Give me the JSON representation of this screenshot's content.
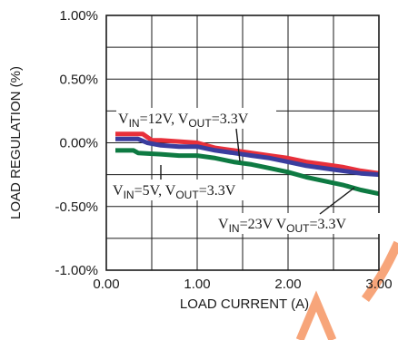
{
  "chart_data": {
    "type": "line",
    "xlabel": "LOAD CURRENT (A)",
    "ylabel": "LOAD REGULATION (%)",
    "xlim": [
      0,
      3
    ],
    "ylim": [
      -1,
      1
    ],
    "x_ticks": [
      {
        "value": 0,
        "label": "0.00"
      },
      {
        "value": 1,
        "label": "1.00"
      },
      {
        "value": 2,
        "label": "2.00"
      },
      {
        "value": 3,
        "label": "3.00"
      }
    ],
    "y_ticks": [
      {
        "value": 1,
        "label": "1.00%"
      },
      {
        "value": 0.5,
        "label": "0.50%"
      },
      {
        "value": 0,
        "label": "0.00%"
      },
      {
        "value": -0.5,
        "label": "-0.50%"
      },
      {
        "value": -1,
        "label": "-1.00%"
      }
    ],
    "grid": true,
    "colors": {
      "red": "#e8303a",
      "blue": "#3a3d9e",
      "green": "#0e7a42",
      "watermark": "#f7a57a"
    },
    "series": [
      {
        "color": "#e8303a",
        "x": [
          0.1,
          0.4,
          0.5,
          0.6,
          0.8,
          1.0,
          1.2,
          1.4,
          1.6,
          1.8,
          2.0,
          2.2,
          2.4,
          2.6,
          2.8,
          3.0
        ],
        "y": [
          0.07,
          0.07,
          0.02,
          0.02,
          0.01,
          0.0,
          -0.04,
          -0.06,
          -0.08,
          -0.1,
          -0.12,
          -0.15,
          -0.17,
          -0.19,
          -0.22,
          -0.24
        ]
      },
      {
        "color": "#3a3d9e",
        "x": [
          0.1,
          0.35,
          0.45,
          0.6,
          0.8,
          1.0,
          1.2,
          1.4,
          1.6,
          1.8,
          2.0,
          2.2,
          2.4,
          2.6,
          2.8,
          3.0
        ],
        "y": [
          0.03,
          0.03,
          0.0,
          -0.02,
          -0.03,
          -0.03,
          -0.06,
          -0.08,
          -0.1,
          -0.12,
          -0.15,
          -0.18,
          -0.2,
          -0.22,
          -0.24,
          -0.25
        ]
      },
      {
        "color": "#0e7a42",
        "x": [
          0.1,
          0.3,
          0.35,
          0.6,
          0.8,
          1.0,
          1.2,
          1.4,
          1.6,
          1.8,
          2.0,
          2.2,
          2.4,
          2.6,
          2.8,
          3.0
        ],
        "y": [
          -0.06,
          -0.06,
          -0.08,
          -0.09,
          -0.1,
          -0.1,
          -0.12,
          -0.15,
          -0.17,
          -0.2,
          -0.23,
          -0.27,
          -0.3,
          -0.33,
          -0.37,
          -0.4
        ]
      }
    ],
    "annotations": [
      {
        "main1": "V",
        "sub1": "IN",
        "mid": "=12V, V",
        "sub2": "OUT",
        "end": "=3.3V"
      },
      {
        "main1": "V",
        "sub1": "IN",
        "mid": "=5V, V",
        "sub2": "OUT",
        "end": "=3.3V"
      },
      {
        "main1": "V",
        "sub1": "IN",
        "mid": "=23V V",
        "sub2": "OUT",
        "end": "=3.3V"
      }
    ]
  }
}
